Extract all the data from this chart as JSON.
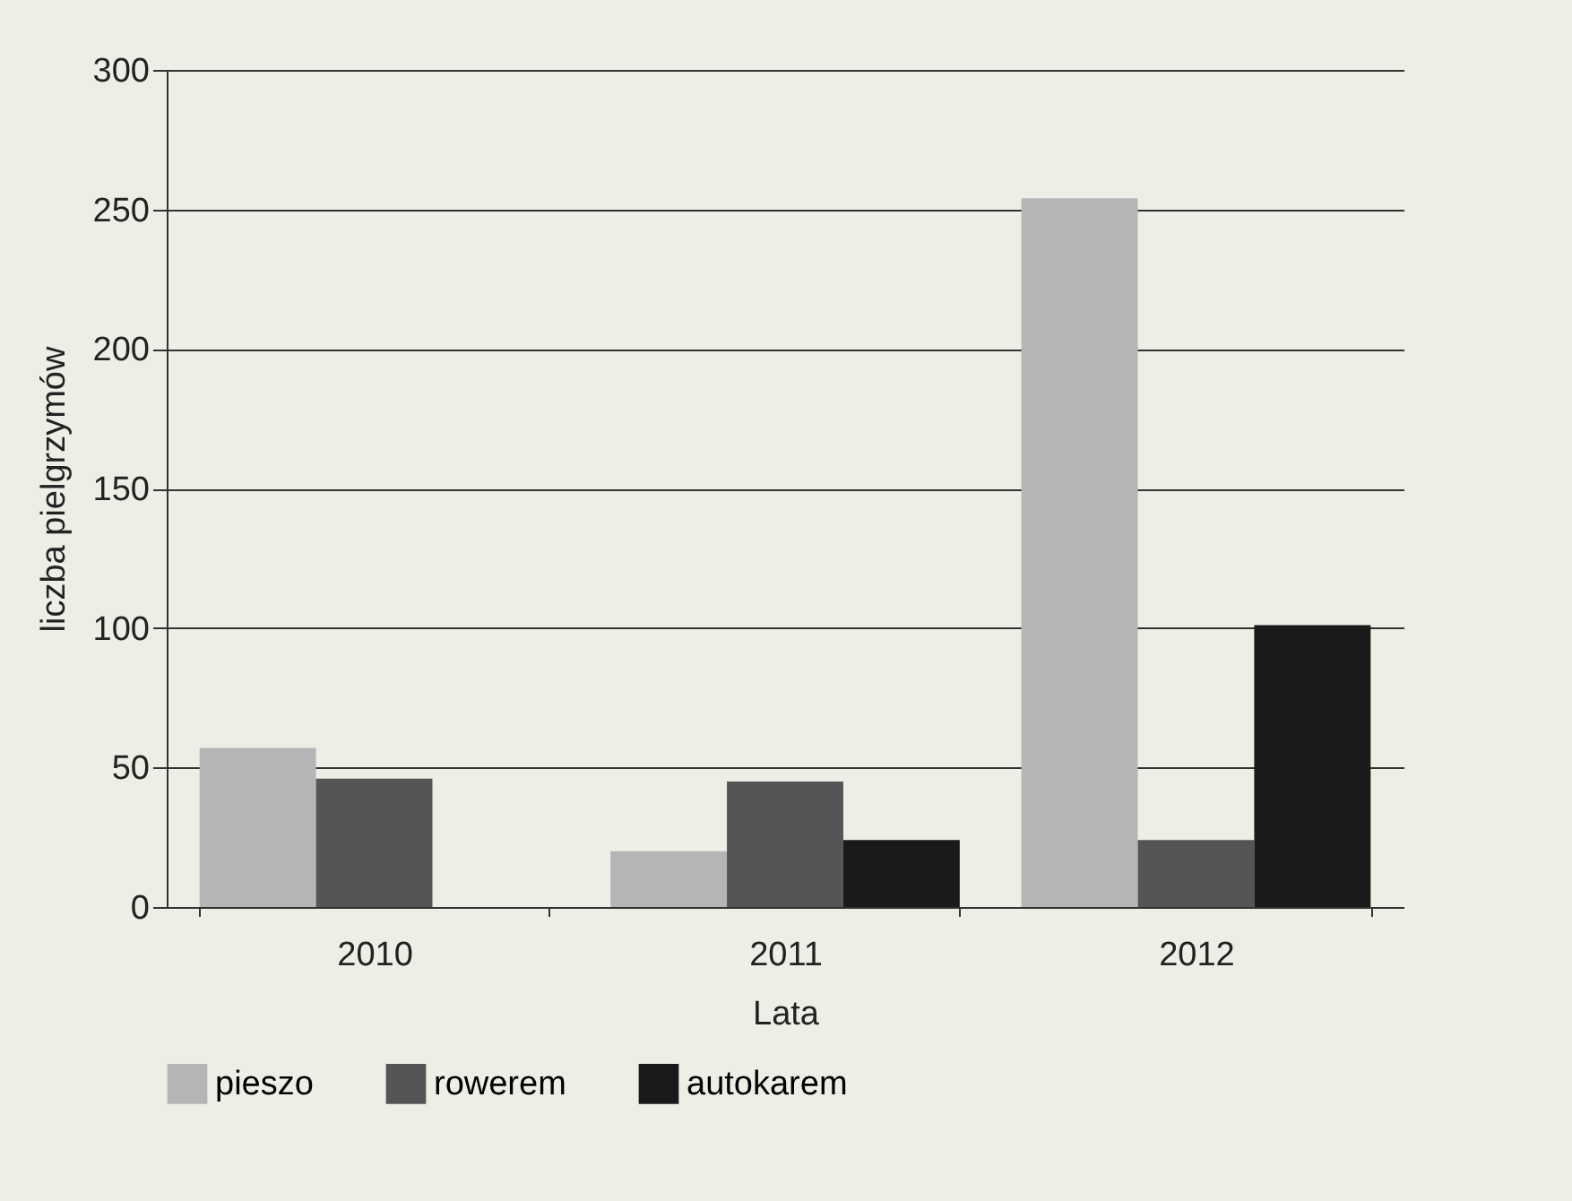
{
  "chart_data": {
    "type": "bar",
    "xlabel": "Lata",
    "ylabel": "liczba pielgrzymów",
    "categories": [
      "2010",
      "2011",
      "2012"
    ],
    "series": [
      {
        "name": "pieszo",
        "color": "#b5b5b5",
        "values": [
          57,
          20,
          254
        ]
      },
      {
        "name": "rowerem",
        "color": "#555555",
        "values": [
          46,
          45,
          24
        ]
      },
      {
        "name": "autokarem",
        "color": "#1a1a1a",
        "values": [
          0,
          24,
          101
        ]
      }
    ],
    "ylim": [
      0,
      300
    ],
    "yticks": [
      0,
      50,
      100,
      150,
      200,
      250,
      300
    ],
    "grid": "y",
    "legend": "bottom"
  }
}
